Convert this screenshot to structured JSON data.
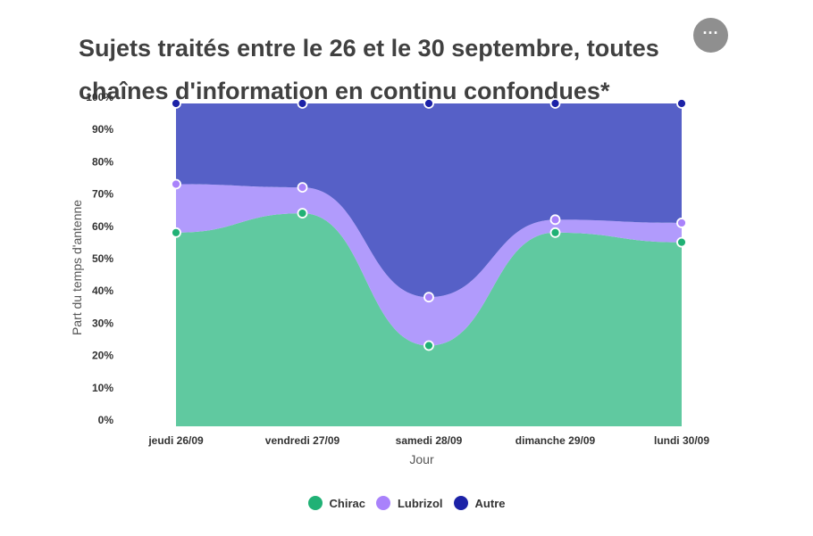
{
  "title": "Sujets traités entre le 26 et le 30 septembre, toutes chaînes d'information en continu confondues*",
  "menu_glyph": "···",
  "chart_data": {
    "type": "area",
    "stacked": true,
    "categories": [
      "jeudi 26/09",
      "vendredi 27/09",
      "samedi 28/09",
      "dimanche 29/09",
      "lundi 30/09"
    ],
    "series": [
      {
        "name": "Chirac",
        "values": [
          60,
          66,
          25,
          60,
          57
        ],
        "color": "#60c9a0",
        "marker": "#20b175"
      },
      {
        "name": "Lubrizol",
        "values": [
          15,
          8,
          15,
          4,
          6
        ],
        "color": "#b19bfc",
        "marker": "#a982fb"
      },
      {
        "name": "Autre",
        "values": [
          25,
          26,
          60,
          36,
          37
        ],
        "color": "#5660c7",
        "marker": "#1c22a7"
      }
    ],
    "xlabel": "Jour",
    "ylabel": "Part du temps d'antenne",
    "y_ticks": [
      "0%",
      "10%",
      "20%",
      "30%",
      "40%",
      "50%",
      "60%",
      "70%",
      "80%",
      "90%",
      "100%"
    ],
    "ylim": [
      0,
      100
    ],
    "legend_position": "bottom",
    "grid": false
  }
}
